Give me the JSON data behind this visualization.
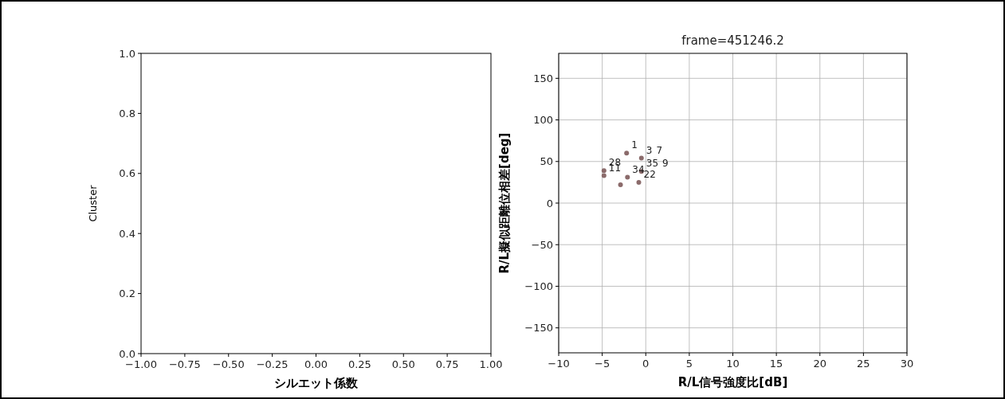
{
  "chart_data": [
    {
      "type": "scatter",
      "xlabel": "シルエット係数",
      "ylabel": "Cluster",
      "xlim": [
        -1,
        1
      ],
      "ylim": [
        0,
        1
      ],
      "xticks": [
        {
          "value": -1,
          "label": "−1.00"
        },
        {
          "value": -0.75,
          "label": "−0.75"
        },
        {
          "value": -0.5,
          "label": "−0.50"
        },
        {
          "value": -0.25,
          "label": "−0.25"
        },
        {
          "value": 0,
          "label": "0.00"
        },
        {
          "value": 0.25,
          "label": "0.25"
        },
        {
          "value": 0.5,
          "label": "0.50"
        },
        {
          "value": 0.75,
          "label": "0.75"
        },
        {
          "value": 1,
          "label": "1.00"
        }
      ],
      "yticks": [
        {
          "value": 0,
          "label": "0.0"
        },
        {
          "value": 0.2,
          "label": "0.2"
        },
        {
          "value": 0.4,
          "label": "0.4"
        },
        {
          "value": 0.6,
          "label": "0.6"
        },
        {
          "value": 0.8,
          "label": "0.8"
        },
        {
          "value": 1,
          "label": "1.0"
        }
      ],
      "grid": false
    },
    {
      "type": "scatter",
      "title": "frame=451246.2",
      "xlabel": "R/L信号強度比[dB]",
      "ylabel": "R/L擬似距離位相差[deg]",
      "series": [
        {
          "color": "#8b6b6b",
          "marker": "circle",
          "x": [
            -2.2,
            -0.5,
            -4.8,
            -4.8,
            -2.1,
            -2.9,
            -0.8,
            -0.5
          ],
          "values": [
            60,
            54,
            39,
            33,
            31,
            22,
            25,
            38
          ]
        }
      ],
      "xlim": [
        -10,
        30
      ],
      "ylim": [
        -180,
        180
      ],
      "xticks": [
        {
          "value": -10,
          "label": "−10"
        },
        {
          "value": -5,
          "label": "−5"
        },
        0,
        5,
        10,
        15,
        20,
        25,
        30
      ],
      "yticks": [
        {
          "value": -150,
          "label": "−150"
        },
        {
          "value": -100,
          "label": "−100"
        },
        {
          "value": -50,
          "label": "−50"
        },
        0,
        50,
        100,
        150
      ],
      "grid": true,
      "annotations": [
        {
          "text": "1",
          "x": -2.2,
          "y": 60
        },
        {
          "text": "3",
          "x": -0.5,
          "y": 54
        },
        {
          "text": "7",
          "x": -0.5,
          "y": 54
        },
        {
          "text": "35",
          "x": -0.5,
          "y": 38
        },
        {
          "text": "28",
          "x": -4.8,
          "y": 39
        },
        {
          "text": "11",
          "x": -4.8,
          "y": 33
        },
        {
          "text": "9",
          "x": -0.5,
          "y": 38
        },
        {
          "text": "34",
          "x": -2.1,
          "y": 31
        },
        {
          "text": "22",
          "x": -0.8,
          "y": 25
        }
      ]
    }
  ]
}
